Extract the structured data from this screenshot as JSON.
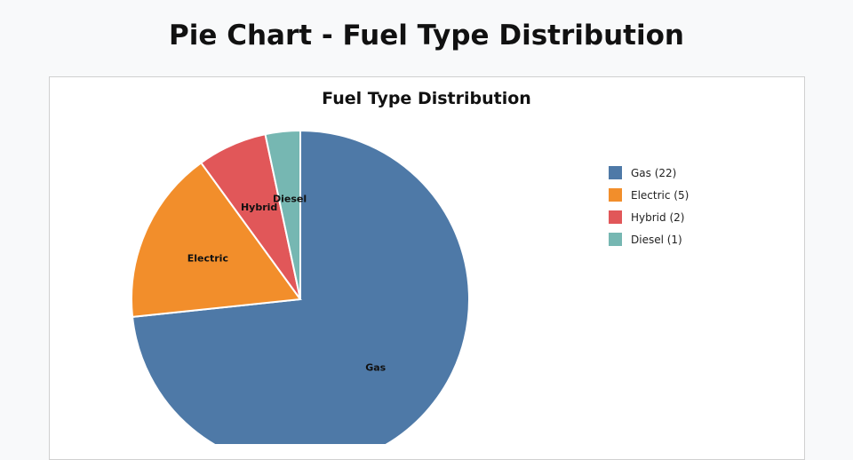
{
  "page": {
    "title": "Pie Chart - Fuel Type Distribution"
  },
  "chart_data": {
    "type": "pie",
    "title": "Fuel Type Distribution",
    "categories": [
      "Gas",
      "Electric",
      "Hybrid",
      "Diesel"
    ],
    "values": [
      22,
      5,
      2,
      1
    ],
    "colors": [
      "#4e79a7",
      "#f28e2b",
      "#e15759",
      "#76b7b2"
    ],
    "legend_labels": [
      "Gas (22)",
      "Electric (5)",
      "Hybrid (2)",
      "Diesel (1)"
    ],
    "legend_position": "right",
    "start_angle": "top, clockwise"
  }
}
